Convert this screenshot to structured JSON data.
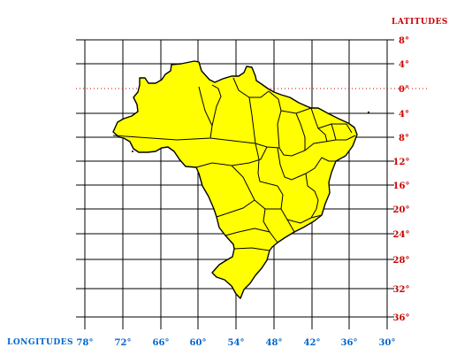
{
  "map": {
    "latitude_header": "LATITUDES",
    "longitude_header": "LONGITUDES",
    "latitude_labels": [
      "8°",
      "4°",
      "0°",
      "4°",
      "8°",
      "12°",
      "16°",
      "20°",
      "24°",
      "28°",
      "32°",
      "36°"
    ],
    "longitude_labels": [
      "78°",
      "72°",
      "66°",
      "60°",
      "54°",
      "48°",
      "42°",
      "36°",
      "30°"
    ],
    "colors": {
      "land_fill": "#ffff00",
      "outline": "#000000",
      "grid": "#000000",
      "equator": "#cc0000",
      "latitude_text": "#cc0000",
      "longitude_text": "#0066cc"
    }
  }
}
